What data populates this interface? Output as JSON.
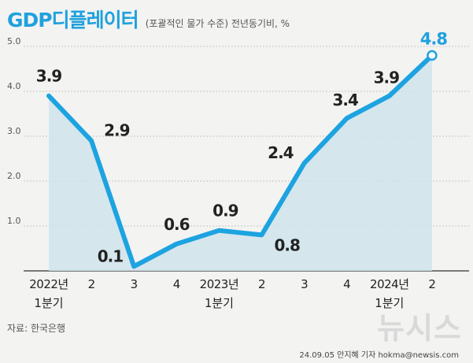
{
  "header": {
    "title": "GDP디플레이터",
    "subtitle": "(포괄적인 물가 수준) 전년동기비, %"
  },
  "chart_data": {
    "type": "line",
    "title": "GDP디플레이터",
    "subtitle": "(포괄적인 물가 수준) 전년동기비, %",
    "categories": [
      [
        "2022년",
        "1분기"
      ],
      [
        "2",
        ""
      ],
      [
        "3",
        ""
      ],
      [
        "4",
        ""
      ],
      [
        "2023년",
        "1분기"
      ],
      [
        "2",
        ""
      ],
      [
        "3",
        ""
      ],
      [
        "4",
        ""
      ],
      [
        "2024년",
        "1분기"
      ],
      [
        "2",
        ""
      ]
    ],
    "values": [
      3.9,
      2.9,
      0.1,
      0.6,
      0.9,
      0.8,
      2.4,
      3.4,
      3.9,
      4.8
    ],
    "data_labels": [
      "3.9",
      "2.9",
      "0.1",
      "0.6",
      "0.9",
      "0.8",
      "2.4",
      "3.4",
      "3.9",
      "4.8"
    ],
    "yticks": [
      "1.0",
      "2.0",
      "3.0",
      "4.0",
      "5.0"
    ],
    "ylim": [
      0,
      5
    ],
    "grid": true,
    "line_color": "#1da3e0",
    "area_color": "#cfe3ec",
    "highlight_color": "#1fa1dd"
  },
  "footer": {
    "source": "자료: 한국은행",
    "credit": "24.09.05 안지혜 기자 hokma@newsis.com",
    "watermark": "뉴시스"
  }
}
